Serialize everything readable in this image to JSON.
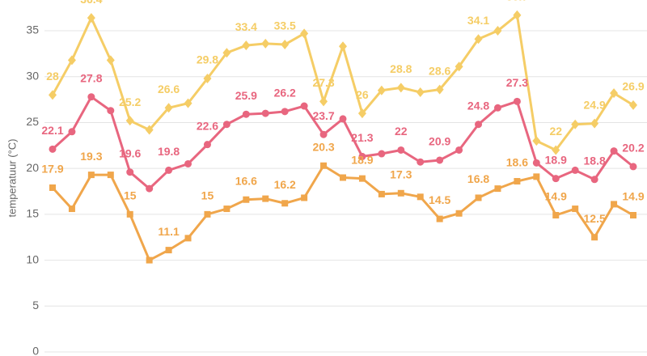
{
  "chart_data": {
    "type": "line",
    "y_label": "temperatuur (°C)",
    "ylim": [
      0,
      38
    ],
    "yticks": [
      0,
      5,
      10,
      15,
      20,
      25,
      30,
      35
    ],
    "grid": true,
    "series": [
      {
        "color": "#f5cd66",
        "marker": "diamond",
        "values": [
          28,
          31.8,
          36.4,
          31.8,
          25.2,
          24.2,
          26.6,
          27.1,
          29.8,
          32.6,
          33.4,
          33.6,
          33.5,
          34.7,
          27.3,
          33.3,
          26,
          28.5,
          28.8,
          28.3,
          28.6,
          31.1,
          34.1,
          35,
          36.7,
          23,
          22,
          24.8,
          24.9,
          28.2,
          26.9
        ]
      },
      {
        "color": "#e8667f",
        "marker": "circle",
        "values": [
          22.1,
          24,
          27.8,
          26.3,
          19.6,
          17.8,
          19.8,
          20.5,
          22.6,
          24.8,
          25.9,
          26,
          26.2,
          26.8,
          23.7,
          25.4,
          21.3,
          21.6,
          22,
          20.7,
          20.9,
          22,
          24.8,
          26.6,
          27.3,
          20.6,
          18.9,
          19.8,
          18.8,
          21.9,
          20.2
        ]
      },
      {
        "color": "#f0a64b",
        "marker": "square",
        "values": [
          17.9,
          15.6,
          19.3,
          19.3,
          15,
          10,
          11.1,
          12.4,
          15,
          15.6,
          16.6,
          16.7,
          16.2,
          16.8,
          20.3,
          19,
          18.9,
          17.2,
          17.3,
          16.9,
          14.5,
          15.1,
          16.8,
          17.8,
          18.6,
          19.1,
          14.9,
          15.6,
          12.5,
          16.1,
          14.9
        ]
      }
    ]
  }
}
